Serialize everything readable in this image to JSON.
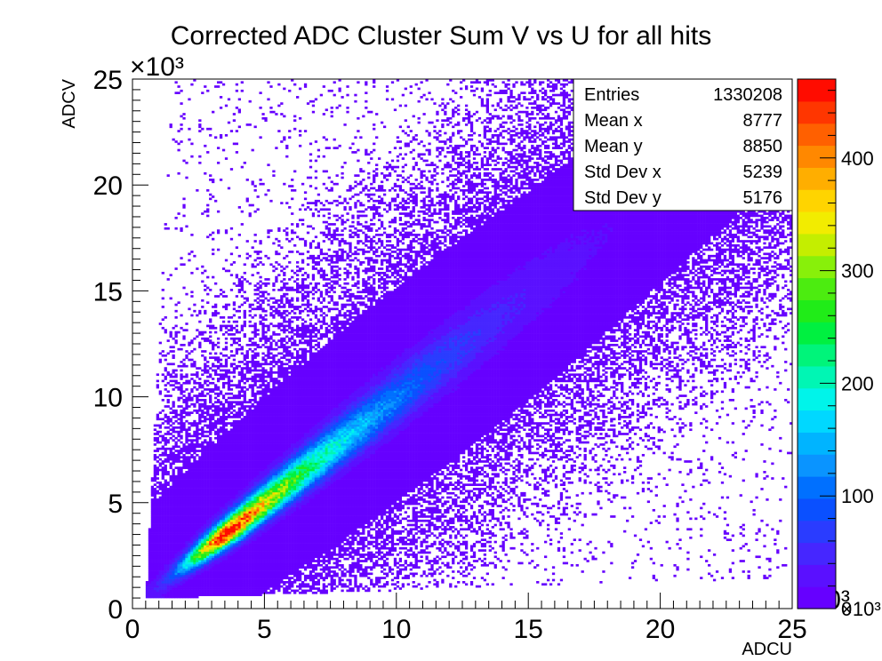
{
  "chart_data": {
    "type": "heatmap",
    "title": "Corrected ADC Cluster Sum V vs U for all hits",
    "xlabel": "ADCU",
    "ylabel": "ADCV",
    "x_multiplier": "×10³",
    "y_multiplier": "×10³",
    "z_multiplier": "×10³",
    "xlim": [
      0,
      25
    ],
    "ylim": [
      0,
      25
    ],
    "zlim": [
      0,
      470
    ],
    "x_ticks": [
      "0",
      "5",
      "10",
      "15",
      "20",
      "25"
    ],
    "y_ticks": [
      "0",
      "5",
      "10",
      "15",
      "20",
      "25"
    ],
    "z_ticks": [
      "0",
      "100",
      "200",
      "300",
      "400"
    ],
    "palette": [
      "#6600ff",
      "#5a10ff",
      "#4626ff",
      "#2a3cff",
      "#0a50ff",
      "#0070ff",
      "#0a94ff",
      "#00b4ff",
      "#00d8ff",
      "#00f4ea",
      "#00f6b4",
      "#00f47a",
      "#00f040",
      "#20ec18",
      "#4cec10",
      "#88f00a",
      "#c4ee00",
      "#f2ec00",
      "#ffd400",
      "#ffae00",
      "#ff8800",
      "#ff6000",
      "#ff3600",
      "#ff0c00"
    ],
    "density_model": {
      "ridge": {
        "x_range": [
          0.5,
          25
        ],
        "slope": 1.0,
        "intercept": 0.0,
        "peak_x": 3.7,
        "peak_value": 470
      },
      "background": {
        "level": 3,
        "lower_cutoff": "y ≈ 0.45 + 0.04·x",
        "upper_cutoff": "x ≈ 0.5 + 0.04·y"
      }
    },
    "stats": {
      "entries": "1330208",
      "mean_x": "8777",
      "mean_y": "8850",
      "std_dev_x": "5239",
      "std_dev_y": "5176"
    },
    "grid": false,
    "legend": "top-right stats box"
  },
  "stats_box": {
    "rows": [
      {
        "label": "Entries",
        "value": "1330208"
      },
      {
        "label": "Mean x",
        "value": "8777"
      },
      {
        "label": "Mean y",
        "value": "8850"
      },
      {
        "label": "Std Dev x",
        "value": "5239"
      },
      {
        "label": "Std Dev y",
        "value": "5176"
      }
    ]
  }
}
